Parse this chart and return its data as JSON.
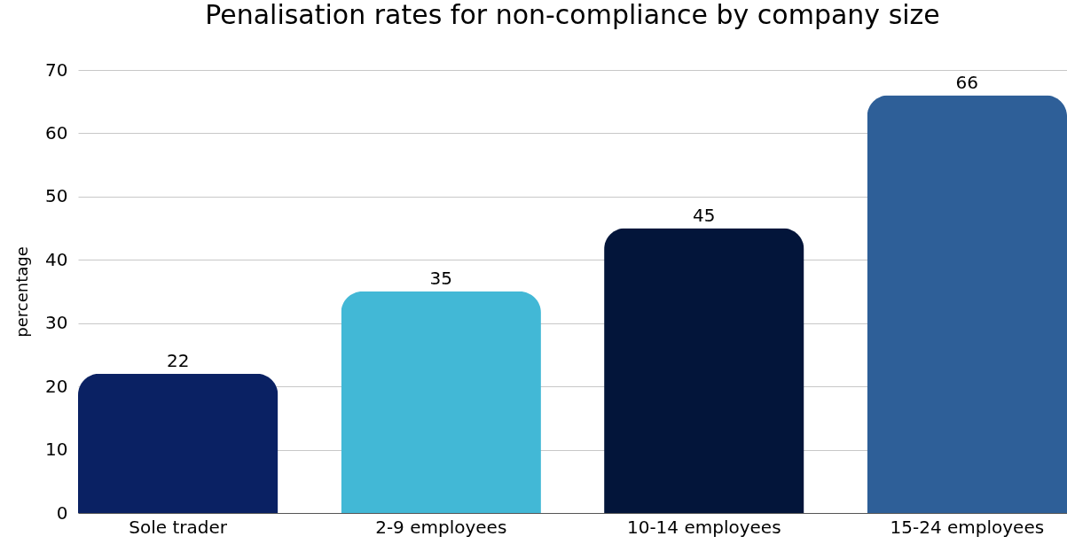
{
  "chart_data": {
    "type": "bar",
    "title": "Penalisation rates for non-compliance by company size",
    "ylabel": "percentage",
    "categories": [
      "Sole trader",
      "2-9 employees",
      "10-14 employees",
      "15-24 employees"
    ],
    "values": [
      22,
      35,
      45,
      66
    ],
    "colors": [
      "#0a2163",
      "#42b8d6",
      "#03153a",
      "#2e5f98"
    ],
    "ylim": [
      0,
      70
    ],
    "yticks": [
      0,
      10,
      20,
      30,
      40,
      50,
      60,
      70
    ],
    "grid": "y",
    "data_labels": true
  }
}
